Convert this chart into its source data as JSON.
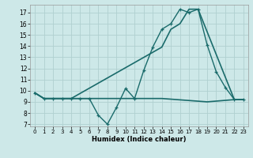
{
  "xlabel": "Humidex (Indice chaleur)",
  "xlim": [
    -0.5,
    23.5
  ],
  "ylim": [
    6.8,
    17.7
  ],
  "yticks": [
    7,
    8,
    9,
    10,
    11,
    12,
    13,
    14,
    15,
    16,
    17
  ],
  "xticks": [
    0,
    1,
    2,
    3,
    4,
    5,
    6,
    7,
    8,
    9,
    10,
    11,
    12,
    13,
    14,
    15,
    16,
    17,
    18,
    19,
    20,
    21,
    22,
    23
  ],
  "bg_color": "#cde8e8",
  "line_color": "#1a6b6b",
  "grid_color": "#b0d0d0",
  "line1_x": [
    0,
    1,
    2,
    3,
    4,
    5,
    6,
    7,
    8,
    9,
    10,
    11,
    12,
    13,
    14,
    15,
    16,
    17,
    18,
    19,
    20,
    21,
    22,
    23
  ],
  "line1_y": [
    9.8,
    9.3,
    9.3,
    9.3,
    9.3,
    9.3,
    9.3,
    7.8,
    7.0,
    8.5,
    10.2,
    9.3,
    11.8,
    13.9,
    15.5,
    16.0,
    17.3,
    17.0,
    17.3,
    14.1,
    11.7,
    10.3,
    9.2,
    9.2
  ],
  "line2_x": [
    0,
    1,
    4,
    14,
    15,
    16,
    17,
    18,
    22,
    23
  ],
  "line2_y": [
    9.8,
    9.3,
    9.3,
    13.9,
    15.5,
    16.0,
    17.3,
    17.3,
    9.2,
    9.2
  ],
  "line3_x": [
    0,
    1,
    2,
    3,
    4,
    9,
    14,
    19,
    22,
    23
  ],
  "line3_y": [
    9.8,
    9.3,
    9.3,
    9.3,
    9.3,
    9.3,
    9.3,
    9.0,
    9.2,
    9.2
  ]
}
